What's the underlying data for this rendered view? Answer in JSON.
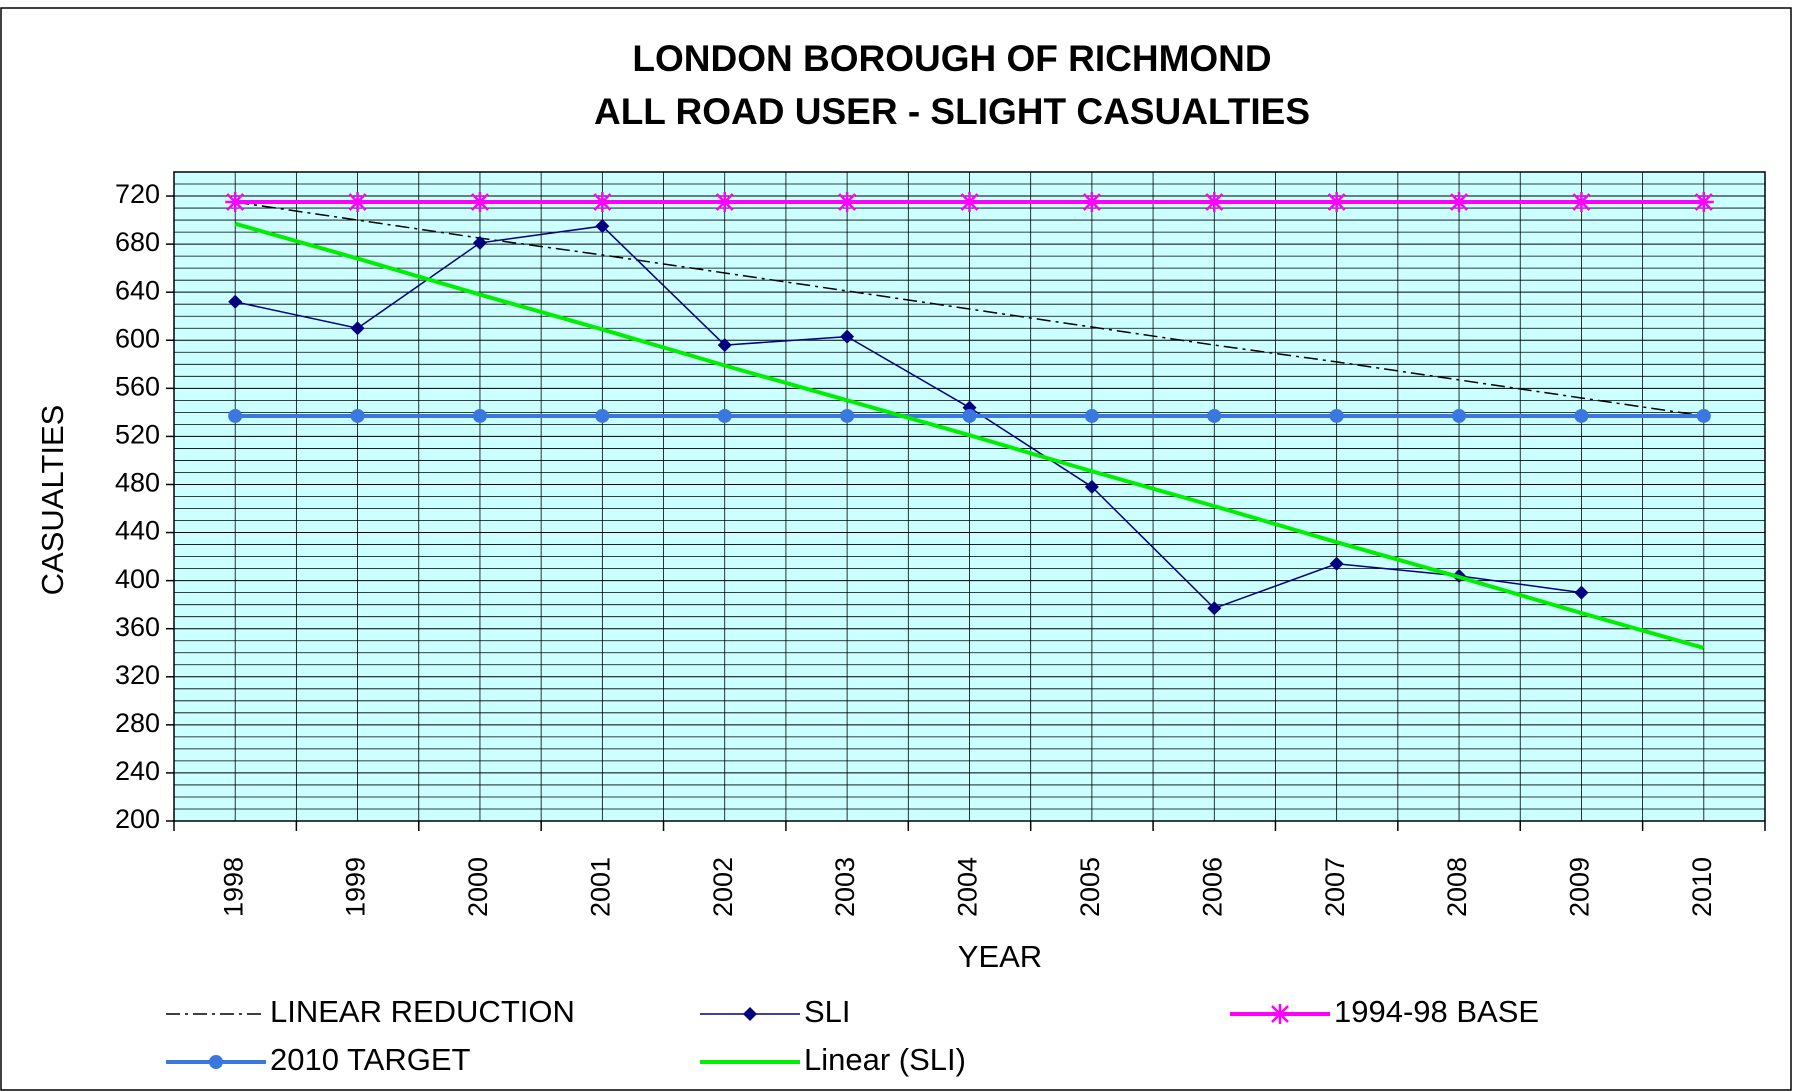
{
  "chart_data": {
    "type": "line",
    "title": [
      "LONDON BOROUGH OF RICHMOND",
      "ALL ROAD USER - SLIGHT CASUALTIES"
    ],
    "x_label": "YEAR",
    "y_label": "CASUALTIES",
    "categories": [
      "1998",
      "1999",
      "2000",
      "2001",
      "2002",
      "2003",
      "2004",
      "2005",
      "2006",
      "2007",
      "2008",
      "2009",
      "2010"
    ],
    "series": [
      {
        "name": "LINEAR REDUCTION",
        "color": "#000000",
        "dash": true,
        "width": 1.5,
        "marker": null,
        "values": [
          715,
          700,
          685,
          671,
          656,
          641,
          626,
          611,
          596,
          582,
          567,
          552,
          537
        ]
      },
      {
        "name": "SLI",
        "color": "#000080",
        "dash": false,
        "width": 1.5,
        "marker": "diamond",
        "values": [
          632,
          610,
          681,
          695,
          596,
          603,
          544,
          478,
          377,
          414,
          404,
          390,
          null
        ]
      },
      {
        "name": "1994-98 BASE",
        "color": "#ff00ff",
        "dash": false,
        "width": 4,
        "marker": "star",
        "values": [
          715,
          715,
          715,
          715,
          715,
          715,
          715,
          715,
          715,
          715,
          715,
          715,
          715
        ]
      },
      {
        "name": "2010 TARGET",
        "color": "#3a78e0",
        "dash": false,
        "width": 4,
        "marker": "circle",
        "values": [
          537,
          537,
          537,
          537,
          537,
          537,
          537,
          537,
          537,
          537,
          537,
          537,
          537
        ]
      },
      {
        "name": "Linear (SLI)",
        "color": "#00ee00",
        "dash": false,
        "width": 4,
        "marker": null,
        "values": [
          697,
          668,
          638,
          609,
          579,
          550,
          521,
          491,
          462,
          432,
          403,
          373,
          344
        ]
      }
    ],
    "ylim": [
      200,
      740
    ],
    "yticks": [
      200,
      240,
      280,
      320,
      360,
      400,
      440,
      480,
      520,
      560,
      600,
      640,
      680,
      720
    ],
    "yminorticks": [
      210,
      220,
      230,
      250,
      260,
      270,
      290,
      300,
      310,
      330,
      340,
      350,
      370,
      380,
      390,
      410,
      420,
      430,
      450,
      460,
      470,
      490,
      500,
      510,
      530,
      540,
      550,
      570,
      580,
      590,
      610,
      620,
      630,
      650,
      660,
      670,
      690,
      700,
      710,
      730
    ],
    "grid": true,
    "plot_background": "#ccffff",
    "legend": "bottom"
  }
}
